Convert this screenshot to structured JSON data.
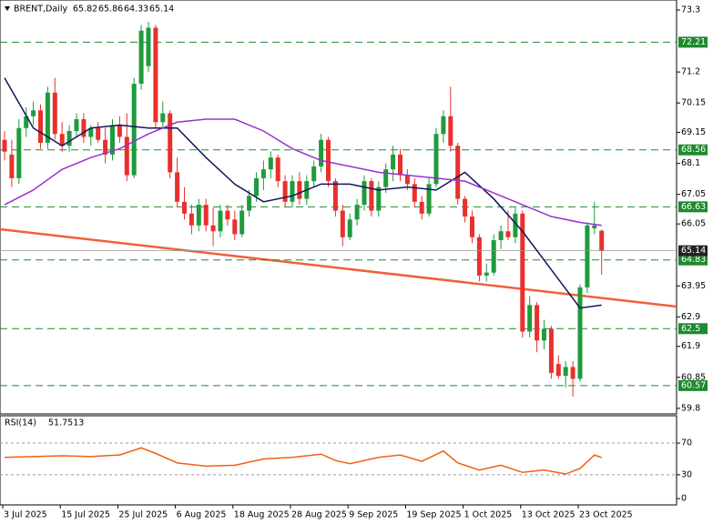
{
  "chart_data": {
    "type": "candlestick",
    "symbol": "BRENT,Daily",
    "up_color": "#1e9b3c",
    "down_color": "#e8302c",
    "ylim": [
      59.61,
      73.64
    ],
    "yticks": [
      73.3,
      71.2,
      70.15,
      69.15,
      68.1,
      67.05,
      66.05,
      63.95,
      62.9,
      61.9,
      60.85,
      59.8
    ],
    "levels": [
      72.21,
      68.56,
      66.63,
      64.83,
      62.5,
      60.57
    ],
    "level_color": "#1e8a2e",
    "trendline": {
      "values": [
        65.87,
        63.25
      ],
      "color": "#f0603c"
    },
    "categories": [
      "3 Jul 2025",
      null,
      null,
      null,
      null,
      null,
      null,
      null,
      "15 Jul 2025",
      null,
      null,
      null,
      null,
      null,
      null,
      null,
      "25 Jul 2025",
      null,
      null,
      null,
      null,
      null,
      null,
      null,
      "6 Aug 2025",
      null,
      null,
      null,
      null,
      null,
      null,
      null,
      "18 Aug 2025",
      null,
      null,
      null,
      null,
      null,
      null,
      null,
      "28 Aug 2025",
      null,
      null,
      null,
      null,
      null,
      null,
      null,
      "9 Sep 2025",
      null,
      null,
      null,
      null,
      null,
      null,
      null,
      "19 Sep 2025",
      null,
      null,
      null,
      null,
      null,
      null,
      null,
      "1 Oct 2025",
      null,
      null,
      null,
      null,
      null,
      null,
      null,
      "13 Oct 2025",
      null,
      null,
      null,
      null,
      null,
      null,
      null,
      "23 Oct 2025",
      null,
      null,
      null
    ],
    "candles": [
      [
        68.9,
        69.2,
        68.2,
        68.5
      ],
      [
        68.4,
        68.9,
        67.3,
        67.6
      ],
      [
        67.6,
        69.6,
        67.4,
        69.3
      ],
      [
        69.3,
        70.0,
        69.0,
        69.7
      ],
      [
        69.7,
        70.2,
        69.4,
        69.9
      ],
      [
        69.9,
        70.1,
        68.6,
        68.8
      ],
      [
        68.8,
        70.7,
        68.6,
        70.5
      ],
      [
        70.5,
        71.0,
        68.9,
        69.1
      ],
      [
        69.1,
        69.5,
        68.5,
        68.7
      ],
      [
        68.7,
        69.4,
        68.5,
        69.2
      ],
      [
        69.2,
        69.8,
        69.0,
        69.6
      ],
      [
        69.6,
        69.8,
        68.8,
        69.0
      ],
      [
        69.0,
        69.4,
        68.7,
        69.3
      ],
      [
        69.3,
        69.5,
        68.8,
        68.9
      ],
      [
        68.9,
        69.3,
        68.1,
        68.4
      ],
      [
        68.4,
        69.6,
        68.2,
        69.4
      ],
      [
        69.4,
        69.7,
        68.8,
        69.0
      ],
      [
        69.0,
        69.8,
        67.5,
        67.7
      ],
      [
        67.7,
        71.0,
        67.6,
        70.8
      ],
      [
        70.8,
        72.8,
        70.6,
        72.6
      ],
      [
        71.4,
        72.9,
        71.2,
        72.7
      ],
      [
        72.7,
        72.8,
        69.3,
        69.5
      ],
      [
        69.5,
        70.2,
        69.3,
        69.8
      ],
      [
        69.8,
        69.9,
        67.6,
        67.8
      ],
      [
        67.8,
        68.3,
        66.6,
        66.8
      ],
      [
        66.8,
        67.3,
        66.2,
        66.4
      ],
      [
        66.4,
        66.7,
        65.7,
        66.0
      ],
      [
        66.0,
        66.9,
        65.8,
        66.7
      ],
      [
        66.7,
        66.9,
        65.8,
        66.0
      ],
      [
        66.0,
        66.6,
        65.3,
        65.8
      ],
      [
        65.8,
        66.7,
        65.6,
        66.5
      ],
      [
        66.5,
        66.7,
        66.0,
        66.2
      ],
      [
        66.2,
        66.5,
        65.5,
        65.7
      ],
      [
        65.7,
        66.7,
        65.6,
        66.5
      ],
      [
        66.5,
        67.2,
        66.3,
        67.0
      ],
      [
        67.0,
        67.8,
        66.8,
        67.6
      ],
      [
        67.6,
        68.2,
        67.2,
        67.9
      ],
      [
        67.9,
        68.5,
        67.6,
        68.3
      ],
      [
        68.3,
        68.4,
        67.3,
        67.5
      ],
      [
        67.5,
        67.7,
        66.6,
        66.8
      ],
      [
        66.8,
        67.7,
        66.6,
        67.5
      ],
      [
        67.5,
        67.8,
        66.7,
        66.9
      ],
      [
        66.9,
        67.7,
        66.7,
        67.5
      ],
      [
        67.5,
        68.2,
        67.3,
        68.0
      ],
      [
        68.0,
        69.1,
        67.8,
        68.9
      ],
      [
        68.9,
        69.0,
        67.3,
        67.5
      ],
      [
        67.5,
        67.6,
        66.3,
        66.5
      ],
      [
        66.5,
        66.7,
        65.3,
        65.6
      ],
      [
        65.6,
        66.4,
        65.5,
        66.2
      ],
      [
        66.2,
        66.9,
        66.0,
        66.7
      ],
      [
        66.7,
        67.7,
        66.5,
        67.5
      ],
      [
        67.5,
        67.6,
        66.3,
        66.5
      ],
      [
        66.5,
        67.5,
        66.3,
        67.3
      ],
      [
        67.3,
        68.1,
        67.1,
        67.9
      ],
      [
        67.9,
        68.7,
        67.5,
        68.4
      ],
      [
        68.4,
        68.6,
        67.5,
        67.7
      ],
      [
        67.7,
        67.9,
        67.2,
        67.4
      ],
      [
        67.4,
        67.6,
        66.6,
        66.8
      ],
      [
        66.8,
        67.0,
        66.2,
        66.4
      ],
      [
        66.4,
        67.6,
        66.3,
        67.4
      ],
      [
        67.4,
        69.3,
        67.3,
        69.1
      ],
      [
        69.1,
        69.9,
        68.8,
        69.7
      ],
      [
        69.7,
        70.7,
        68.5,
        68.7
      ],
      [
        68.7,
        68.8,
        66.7,
        66.9
      ],
      [
        66.9,
        67.0,
        66.1,
        66.3
      ],
      [
        66.3,
        66.5,
        65.4,
        65.6
      ],
      [
        65.6,
        65.7,
        64.1,
        64.3
      ],
      [
        64.3,
        64.7,
        64.1,
        64.4
      ],
      [
        64.4,
        65.7,
        64.3,
        65.5
      ],
      [
        65.5,
        66.0,
        65.2,
        65.8
      ],
      [
        65.8,
        66.5,
        65.5,
        65.6
      ],
      [
        65.6,
        66.6,
        65.4,
        66.4
      ],
      [
        66.4,
        66.5,
        62.2,
        62.4
      ],
      [
        62.4,
        63.6,
        62.2,
        63.3
      ],
      [
        63.3,
        63.4,
        61.7,
        62.1
      ],
      [
        62.1,
        62.8,
        61.8,
        62.5
      ],
      [
        62.5,
        62.6,
        60.8,
        61.0
      ],
      [
        61.3,
        61.6,
        60.8,
        60.9
      ],
      [
        60.9,
        61.4,
        60.5,
        61.2
      ],
      [
        61.2,
        61.4,
        60.2,
        60.8
      ],
      [
        60.8,
        64.0,
        60.7,
        63.9
      ],
      [
        63.9,
        66.1,
        63.7,
        66.0
      ],
      [
        65.9,
        66.8,
        65.7,
        66.0
      ],
      [
        65.82,
        65.86,
        64.33,
        65.14
      ]
    ],
    "series": [
      {
        "color": "#14145a",
        "x": [
          0,
          4,
          8,
          12,
          16,
          20,
          24,
          28,
          32,
          36,
          40,
          44,
          48,
          52,
          56,
          60,
          64,
          68,
          72,
          76,
          80,
          83
        ],
        "values": [
          71.0,
          69.3,
          68.7,
          69.3,
          69.4,
          69.3,
          69.3,
          68.3,
          67.4,
          66.8,
          67.0,
          67.4,
          67.4,
          67.2,
          67.3,
          67.2,
          67.8,
          66.9,
          65.8,
          64.5,
          63.2,
          63.3
        ]
      },
      {
        "color": "#9932cc",
        "x": [
          0,
          4,
          8,
          12,
          16,
          20,
          24,
          28,
          32,
          36,
          40,
          44,
          48,
          52,
          56,
          60,
          64,
          68,
          72,
          76,
          80,
          83
        ],
        "values": [
          66.7,
          67.2,
          67.9,
          68.3,
          68.6,
          69.1,
          69.5,
          69.6,
          69.6,
          69.2,
          68.6,
          68.2,
          68.0,
          67.8,
          67.7,
          67.6,
          67.5,
          67.1,
          66.7,
          66.3,
          66.1,
          66.0
        ]
      }
    ],
    "rsi": {
      "name": "RSI(14)",
      "color": "#f06010",
      "ylim": [
        -8,
        104.5
      ],
      "yticks": [
        70,
        30,
        0
      ],
      "levels": [
        70,
        30
      ],
      "x": [
        0,
        4,
        8,
        12,
        16,
        19,
        21,
        24,
        28,
        32,
        36,
        40,
        44,
        46,
        48,
        52,
        55,
        58,
        61,
        63,
        66,
        69,
        72,
        75,
        78,
        80,
        82,
        83
      ],
      "values": [
        52,
        53,
        54,
        53,
        55,
        64,
        57,
        45,
        41,
        42,
        50,
        52,
        56,
        48,
        44,
        52,
        55,
        47,
        60,
        45,
        36,
        42,
        33,
        36,
        31,
        38,
        55,
        51.7513
      ]
    }
  }
}
